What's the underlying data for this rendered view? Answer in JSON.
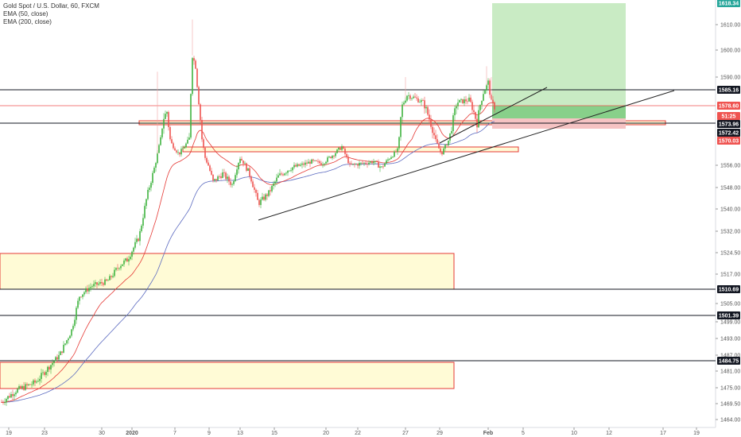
{
  "legend": {
    "title": "Gold Spot / U.S. Dollar, 60, FXCM",
    "ema50": "EMA (50, close)",
    "ema200": "EMA (200, close)"
  },
  "colors": {
    "up": "#26a69a",
    "up_green": "#3fb43f",
    "down": "#ef5350",
    "ema50": "#e53935",
    "ema200": "#5c6bc0",
    "zone_fill": "#fffbd6",
    "zone_stroke": "#e53935",
    "target": "#c9ebc4",
    "target_dark": "#88d08a",
    "stop": "#f6c3c3"
  },
  "chart_data": {
    "type": "candlestick",
    "y_ticks": [
      1610.0,
      1600.0,
      1590.0,
      1556.0,
      1548.0,
      1540.0,
      1532.0,
      1524.5,
      1517.0,
      1505.0,
      1499.0,
      1493.0,
      1487.0,
      1481.0,
      1475.0,
      1469.5,
      1464.0
    ],
    "x_ticks": [
      "19",
      "23",
      "30",
      "2020",
      "7",
      "9",
      "13",
      "15",
      "20",
      "22",
      "27",
      "29",
      "Feb",
      "5",
      "10",
      "12",
      "17",
      "19"
    ],
    "price_badges": [
      {
        "value": "1618.34",
        "bg": "#26a69a",
        "fg": "#ffffff"
      },
      {
        "value": "1585.16",
        "bg": "#131722",
        "fg": "#ffffff"
      },
      {
        "value": "1578.60",
        "bg": "#ef5350",
        "fg": "#ffffff"
      },
      {
        "value": "51:25",
        "bg": "#ef5350",
        "fg": "#ffffff"
      },
      {
        "value": "1573.96",
        "bg": "#131722",
        "fg": "#ffffff"
      },
      {
        "value": "1572.42",
        "bg": "#131722",
        "fg": "#ffffff"
      },
      {
        "value": "1570.03",
        "bg": "#ef5350",
        "fg": "#ffffff"
      },
      {
        "value": "1510.69",
        "bg": "#131722",
        "fg": "#ffffff"
      },
      {
        "value": "1501.39",
        "bg": "#131722",
        "fg": "#ffffff"
      },
      {
        "value": "1484.75",
        "bg": "#131722",
        "fg": "#ffffff"
      }
    ],
    "horizontal_levels": [
      1585.16,
      1573.96,
      1510.69,
      1501.39,
      1484.75
    ],
    "last_price": 1578.6,
    "target": 1618.34,
    "stop": 1570.03
  }
}
